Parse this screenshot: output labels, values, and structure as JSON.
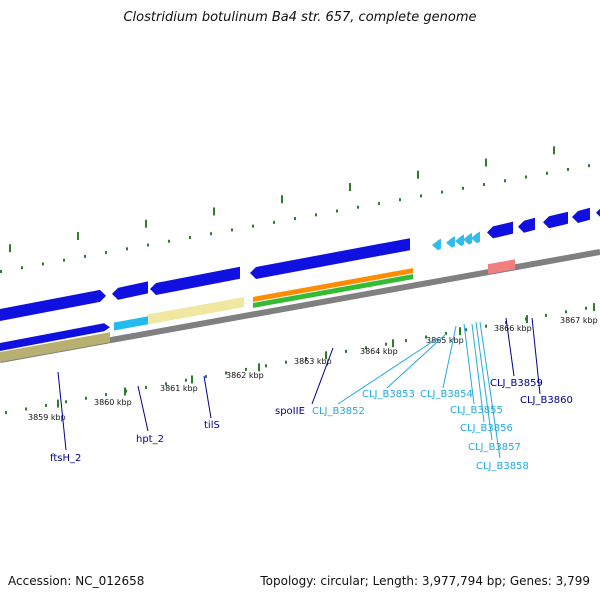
{
  "title": "Clostridium botulinum Ba4 str. 657, complete genome",
  "footer": {
    "accession": "Accession: NC_012658",
    "stats": "Topology: circular; Length: 3,977,794 bp; Genes: 3,799"
  },
  "colors": {
    "backbone": "#808080",
    "cds": "#1010e0",
    "small_cds": "#33bbee",
    "rna": "#f08080",
    "gene_orange": "#ff8c00",
    "gene_green": "#33bb33",
    "gene_khaki": "#b8b070",
    "gene_cream": "#f0e8a0",
    "gene_cyan": "#22bbee",
    "tick": "#2e7d2e",
    "label_dark": "#00008b",
    "label_light": "#22aadd"
  },
  "kbp_labels": [
    "3859 kbp",
    "3860 kbp",
    "3861 kbp",
    "3862 kbp",
    "3863 kbp",
    "3864 kbp",
    "3865 kbp",
    "3866 kbp",
    "3867 kbp"
  ],
  "gene_labels": [
    "ftsH_2",
    "hpt_2",
    "tilS",
    "spoIIE",
    "CLJ_B3852",
    "CLJ_B3853",
    "CLJ_B3854",
    "CLJ_B3855",
    "CLJ_B3856",
    "CLJ_B3857",
    "CLJ_B3858",
    "CLJ_B3859",
    "CLJ_B3860"
  ]
}
